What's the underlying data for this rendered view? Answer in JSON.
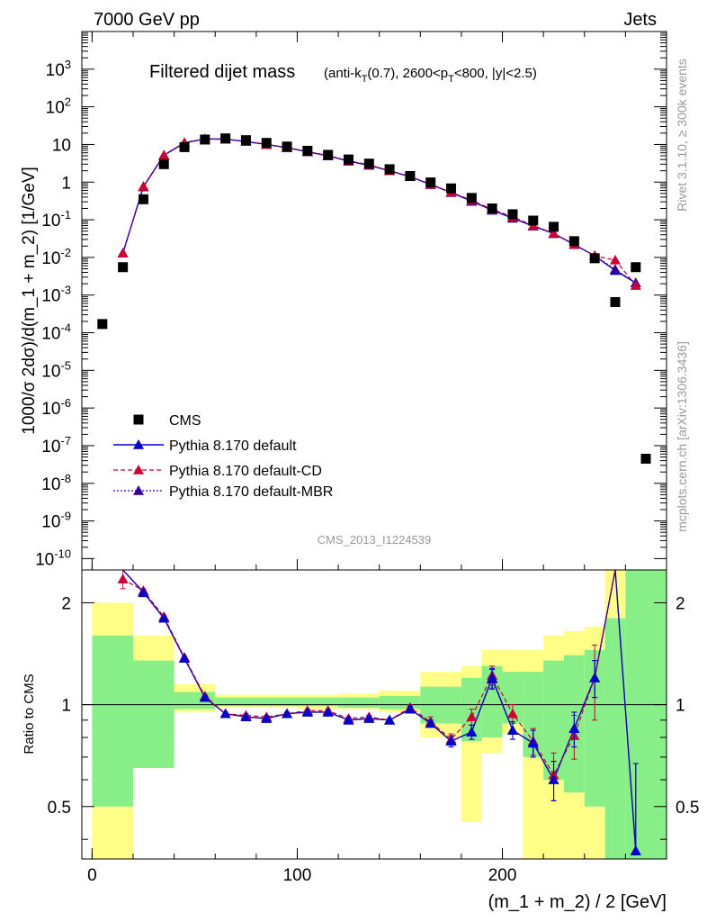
{
  "header": {
    "left": "7000 GeV pp",
    "right": "Jets"
  },
  "side_labels": {
    "rivet": "Rivet 3.1.10, ≥ 300k events",
    "mcplots": "mcplots.cern.ch [arXiv:1306.3436]"
  },
  "colors": {
    "cms": "#000000",
    "default": "#0000cc",
    "cd": "#cc0033",
    "mbr": "#330099",
    "band_yellow": "#ffff88",
    "band_green": "#88ee88",
    "watermark": "#999999"
  },
  "chart_data": [
    {
      "type": "scatter",
      "panel": "main",
      "title_main": "Filtered dijet mass",
      "title_sub": "(anti-k",
      "title_sub_T": "T",
      "title_sub_rest": "(0.7), 2600<p",
      "title_sub_T2": "T",
      "title_sub_end": "<800, |y|<2.5)",
      "ylabel": "1000/σ 2dσ)/d(m_1 + m_2) [1/GeV]",
      "watermark": "CMS_2013_I1224539",
      "xlim": [
        -5,
        280
      ],
      "ylim": [
        5e-11,
        10000.0
      ],
      "yscale": "log",
      "ytick_mantissa": "10",
      "yticks": [
        -10,
        -9,
        -8,
        -7,
        -6,
        -5,
        -4,
        -3,
        -2,
        -1,
        0,
        1,
        2,
        3
      ],
      "ytick_labels": {
        "0": "1",
        "1": "10"
      },
      "legend": [
        "CMS",
        "Pythia 8.170 default",
        "Pythia 8.170 default-CD",
        "Pythia 8.170 default-MBR"
      ],
      "series": [
        {
          "name": "CMS",
          "x": [
            5,
            15,
            25,
            35,
            45,
            55,
            65,
            75,
            85,
            95,
            105,
            115,
            125,
            135,
            145,
            155,
            165,
            175,
            185,
            195,
            205,
            215,
            225,
            235,
            245,
            255,
            265,
            285
          ],
          "y": [
            0.00017,
            0.0055,
            0.35,
            3.0,
            8.5,
            13.5,
            14.5,
            13.0,
            11.0,
            8.8,
            6.8,
            5.3,
            4.0,
            3.1,
            2.2,
            1.45,
            0.98,
            0.68,
            0.38,
            0.2,
            0.14,
            0.095,
            0.065,
            0.027,
            0.0095,
            0.00065,
            0.0055,
            4.5e-08
          ]
        },
        {
          "name": "Pythia 8.170 default",
          "x": [
            15,
            25,
            35,
            45,
            55,
            65,
            75,
            85,
            95,
            105,
            115,
            125,
            135,
            145,
            155,
            165,
            175,
            185,
            195,
            205,
            215,
            225,
            235,
            245,
            255,
            265
          ],
          "y": [
            0.013,
            0.75,
            5.2,
            11.0,
            14.0,
            13.8,
            12.0,
            10.0,
            8.2,
            6.4,
            5.0,
            3.6,
            2.8,
            2.0,
            1.4,
            0.86,
            0.53,
            0.31,
            0.18,
            0.11,
            0.068,
            0.043,
            0.022,
            0.011,
            0.0045,
            0.0021
          ]
        },
        {
          "name": "Pythia 8.170 default-CD",
          "x": [
            15,
            25,
            35,
            45,
            55,
            65,
            75,
            85,
            95,
            105,
            115,
            125,
            135,
            145,
            155,
            165,
            175,
            185,
            195,
            205,
            215,
            225,
            235,
            245,
            255,
            265
          ],
          "y": [
            0.013,
            0.77,
            5.2,
            11.2,
            14.1,
            13.9,
            12.1,
            10.1,
            8.3,
            6.5,
            5.1,
            3.7,
            2.9,
            2.0,
            1.42,
            0.87,
            0.54,
            0.33,
            0.19,
            0.12,
            0.07,
            0.044,
            0.022,
            0.011,
            0.0085,
            0.0018
          ]
        },
        {
          "name": "Pythia 8.170 default-MBR",
          "x": [
            15,
            25,
            35,
            45,
            55,
            65,
            75,
            85,
            95,
            105,
            115,
            125,
            135,
            145,
            155,
            165,
            175,
            185,
            195,
            205,
            215,
            225,
            235,
            245,
            255,
            265
          ],
          "y": [
            0.013,
            0.75,
            5.1,
            11.0,
            14.0,
            13.8,
            12.0,
            10.0,
            8.2,
            6.4,
            5.0,
            3.6,
            2.8,
            2.0,
            1.4,
            0.86,
            0.53,
            0.31,
            0.18,
            0.11,
            0.068,
            0.043,
            0.022,
            0.011,
            0.0048,
            0.0021
          ]
        }
      ]
    },
    {
      "type": "line",
      "panel": "ratio",
      "ylabel": "Ratio to CMS",
      "xlabel": "(m_1 + m_2) / 2 [GeV]",
      "xlim": [
        -5,
        280
      ],
      "ylim": [
        0.35,
        2.5
      ],
      "yscale": "log",
      "xticks": [
        0,
        100,
        200
      ],
      "yticks": [
        0.5,
        1,
        2
      ],
      "reference_line": 1,
      "bands": {
        "bins": [
          [
            0,
            20
          ],
          [
            20,
            40
          ],
          [
            40,
            60
          ],
          [
            60,
            80
          ],
          [
            80,
            100
          ],
          [
            100,
            120
          ],
          [
            120,
            140
          ],
          [
            140,
            160
          ],
          [
            160,
            180
          ],
          [
            180,
            190
          ],
          [
            190,
            200
          ],
          [
            200,
            210
          ],
          [
            210,
            220
          ],
          [
            220,
            230
          ],
          [
            230,
            240
          ],
          [
            240,
            250
          ],
          [
            250,
            260
          ],
          [
            260,
            280
          ]
        ],
        "yellow": [
          [
            0.35,
            2.0
          ],
          [
            0.8,
            1.6
          ],
          [
            0.95,
            1.15
          ],
          [
            0.98,
            1.07
          ],
          [
            0.98,
            1.07
          ],
          [
            0.97,
            1.07
          ],
          [
            0.97,
            1.08
          ],
          [
            0.95,
            1.1
          ],
          [
            0.8,
            1.25
          ],
          [
            0.45,
            1.3
          ],
          [
            0.72,
            1.45
          ],
          [
            0.82,
            1.45
          ],
          [
            0.35,
            1.45
          ],
          [
            0.35,
            1.6
          ],
          [
            0.35,
            1.65
          ],
          [
            0.35,
            1.7
          ],
          [
            0.35,
            2.5
          ],
          [
            0.35,
            2.5
          ]
        ],
        "green": [
          [
            0.5,
            1.6
          ],
          [
            0.65,
            1.35
          ],
          [
            0.97,
            1.09
          ],
          [
            0.99,
            1.05
          ],
          [
            0.99,
            1.05
          ],
          [
            0.99,
            1.05
          ],
          [
            0.98,
            1.05
          ],
          [
            0.97,
            1.06
          ],
          [
            0.88,
            1.13
          ],
          [
            0.78,
            1.2
          ],
          [
            0.8,
            1.3
          ],
          [
            0.88,
            1.25
          ],
          [
            0.7,
            1.25
          ],
          [
            0.6,
            1.35
          ],
          [
            0.55,
            1.4
          ],
          [
            0.5,
            1.45
          ],
          [
            0.35,
            1.8
          ],
          [
            0.35,
            2.5
          ]
        ]
      },
      "series": [
        {
          "name": "Pythia 8.170 default",
          "x": [
            15,
            25,
            35,
            45,
            55,
            65,
            75,
            85,
            95,
            105,
            115,
            125,
            135,
            145,
            155,
            165,
            175,
            185,
            195,
            205,
            215,
            225,
            235,
            245,
            255,
            265
          ],
          "y": [
            2.7,
            2.15,
            1.8,
            1.37,
            1.05,
            0.94,
            0.92,
            0.91,
            0.94,
            0.95,
            0.95,
            0.9,
            0.91,
            0.9,
            0.97,
            0.88,
            0.78,
            0.83,
            1.2,
            0.84,
            0.77,
            0.6,
            0.85,
            1.2,
            6.0,
            0.37
          ],
          "err": [
            0.03,
            0.02,
            0.02,
            0.01,
            0.01,
            0.01,
            0.01,
            0.01,
            0.01,
            0.01,
            0.01,
            0.01,
            0.01,
            0.01,
            0.02,
            0.02,
            0.03,
            0.04,
            0.08,
            0.05,
            0.07,
            0.08,
            0.1,
            0.15,
            2.0,
            0.3
          ]
        },
        {
          "name": "Pythia 8.170 default-CD",
          "x": [
            15,
            25,
            35,
            45,
            55,
            65,
            75,
            85,
            95,
            105,
            115,
            125,
            135,
            145,
            155,
            165,
            175,
            185,
            195,
            205,
            215,
            225,
            235,
            245,
            255
          ],
          "y": [
            2.35,
            2.17,
            1.82,
            1.38,
            1.06,
            0.94,
            0.93,
            0.92,
            0.94,
            0.96,
            0.96,
            0.91,
            0.92,
            0.9,
            0.98,
            0.89,
            0.79,
            0.92,
            1.22,
            0.94,
            0.78,
            0.62,
            0.81,
            1.2,
            6.0
          ],
          "err": [
            0.15,
            0.03,
            0.02,
            0.01,
            0.01,
            0.01,
            0.01,
            0.01,
            0.01,
            0.01,
            0.01,
            0.01,
            0.01,
            0.01,
            0.02,
            0.03,
            0.03,
            0.05,
            0.08,
            0.06,
            0.07,
            0.1,
            0.12,
            0.3,
            2.0
          ]
        },
        {
          "name": "Pythia 8.170 default-MBR",
          "x": [
            15,
            25,
            35,
            45,
            55,
            65,
            75,
            85,
            95,
            105,
            115,
            125,
            135,
            145,
            155,
            165,
            175,
            185,
            195,
            205,
            215,
            225,
            235,
            245,
            255,
            265
          ],
          "y": [
            2.7,
            2.14,
            1.8,
            1.37,
            1.05,
            0.94,
            0.92,
            0.91,
            0.94,
            0.95,
            0.95,
            0.9,
            0.91,
            0.9,
            0.97,
            0.88,
            0.78,
            0.83,
            1.19,
            0.84,
            0.77,
            0.6,
            0.85,
            1.2,
            6.0,
            0.37
          ],
          "err": [
            0.03,
            0.02,
            0.02,
            0.01,
            0.01,
            0.01,
            0.01,
            0.01,
            0.01,
            0.01,
            0.01,
            0.01,
            0.01,
            0.01,
            0.02,
            0.02,
            0.03,
            0.04,
            0.08,
            0.05,
            0.07,
            0.08,
            0.1,
            0.15,
            2.0,
            0.3
          ]
        }
      ]
    }
  ]
}
